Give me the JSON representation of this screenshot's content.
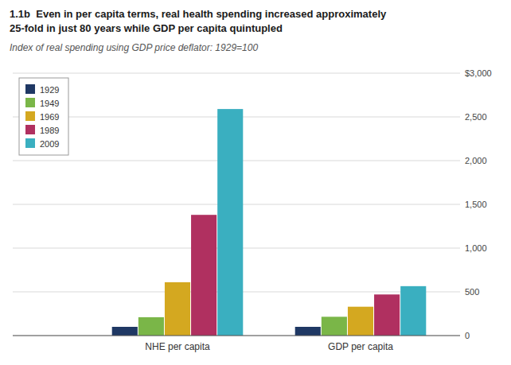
{
  "chart_data": {
    "type": "bar",
    "title": "1.1b  Even in per capita terms, real health spending increased approximately\n25-fold in just 80 years while GDP per capita quintupled",
    "subtitle": "Index of real spending using GDP price deflator: 1929=100",
    "categories": [
      "NHE per capita",
      "GDP per capita"
    ],
    "series": [
      {
        "name": "1929",
        "color": "#1f3864",
        "values": [
          100,
          100
        ]
      },
      {
        "name": "1949",
        "color": "#7ab648",
        "values": [
          210,
          215
        ]
      },
      {
        "name": "1969",
        "color": "#d4a820",
        "values": [
          610,
          330
        ]
      },
      {
        "name": "1989",
        "color": "#b03060",
        "values": [
          1380,
          470
        ]
      },
      {
        "name": "2009",
        "color": "#3aafc0",
        "values": [
          2590,
          565
        ]
      }
    ],
    "ylim": [
      0,
      3000
    ],
    "yticks": [
      0,
      500,
      {
        "value": 1000,
        "label": "1,000"
      },
      {
        "value": 1500,
        "label": "1,500"
      },
      {
        "value": 2000,
        "label": "2,000"
      },
      {
        "value": 2500,
        "label": "2,500"
      },
      {
        "value": 3000,
        "label": "$3,000"
      }
    ],
    "grid": true,
    "legend": "upper left"
  }
}
